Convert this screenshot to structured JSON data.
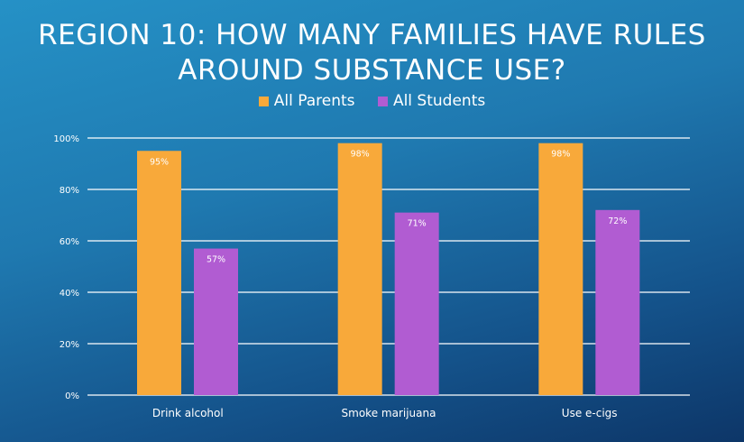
{
  "chart_data": {
    "type": "bar",
    "title": "REGION 10: HOW MANY FAMILIES HAVE RULES AROUND SUBSTANCE USE?",
    "categories": [
      "Drink alcohol",
      "Smoke marijuana",
      "Use e-cigs"
    ],
    "series": [
      {
        "name": "All Parents",
        "values": [
          95,
          98,
          98
        ],
        "labels": [
          "95%",
          "98%",
          "98%"
        ],
        "color": "#F8A93A"
      },
      {
        "name": "All Students",
        "values": [
          57,
          71,
          72
        ],
        "labels": [
          "57%",
          "71%",
          "72%"
        ],
        "color": "#B15CD2"
      }
    ],
    "yticks": [
      "0%",
      "20%",
      "40%",
      "60%",
      "80%",
      "100%"
    ],
    "ylim": [
      0,
      100
    ],
    "grid": true,
    "legend": "top-center"
  }
}
